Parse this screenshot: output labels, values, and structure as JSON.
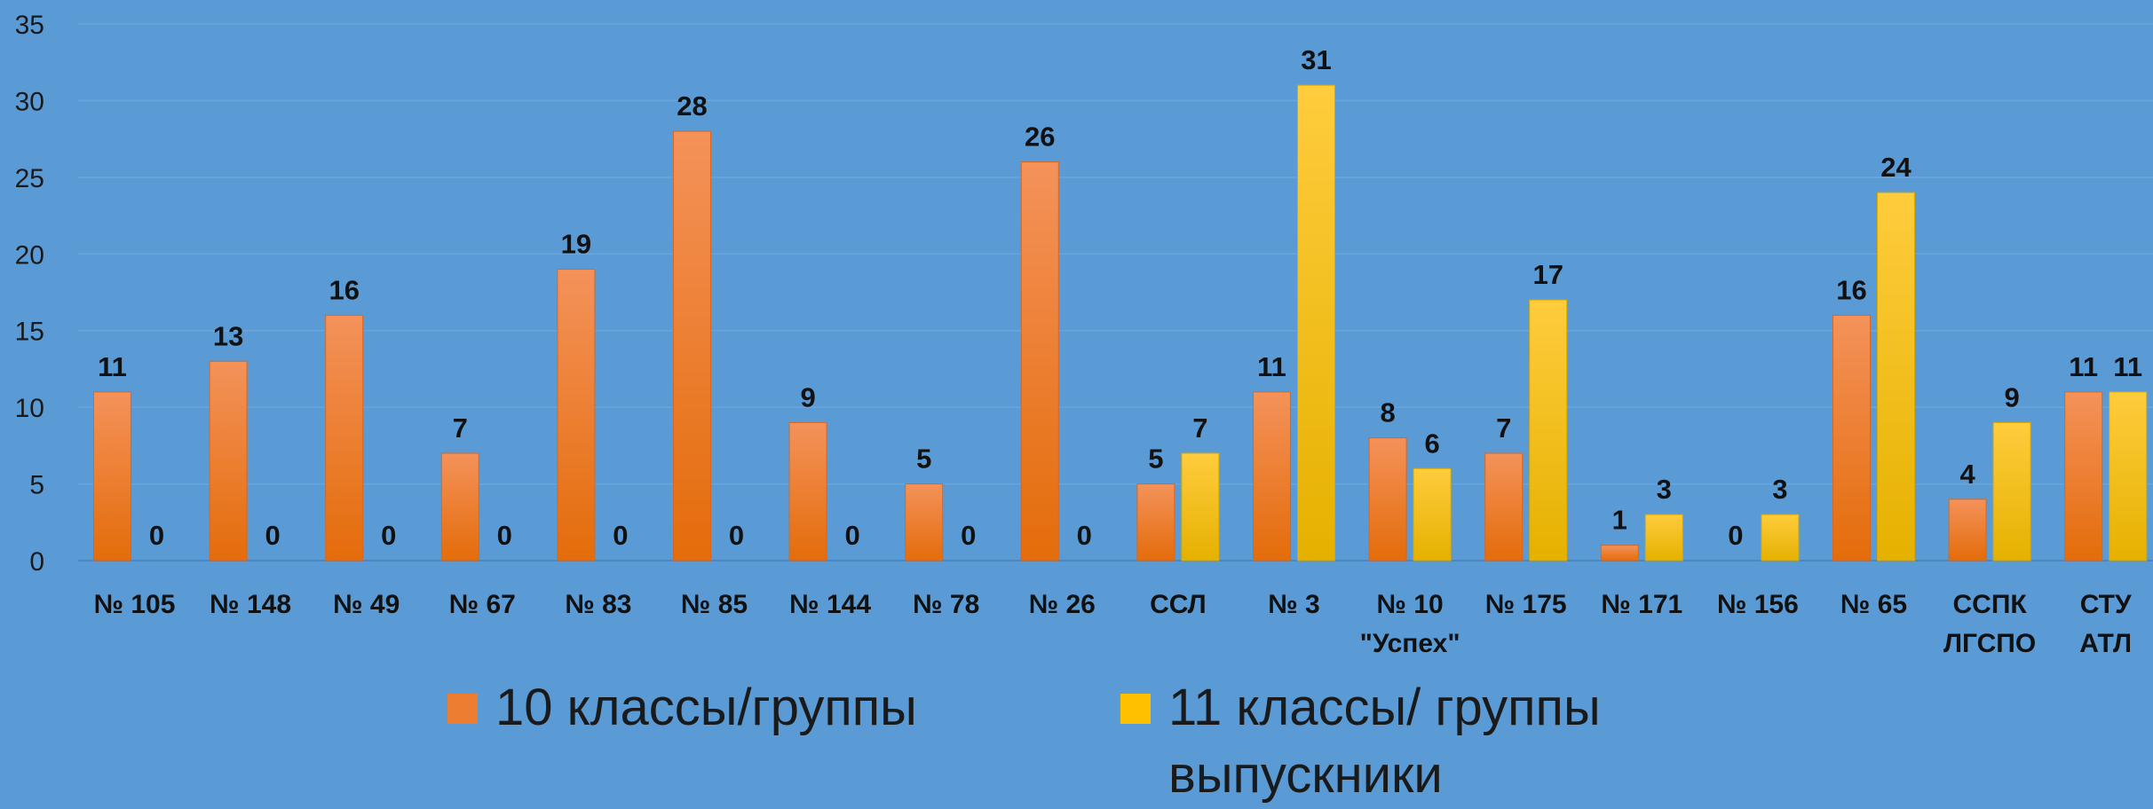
{
  "chart_data": {
    "type": "bar",
    "categories": [
      "№ 105",
      "№ 148",
      "№ 49",
      "№ 67",
      "№ 83",
      "№ 85",
      "№ 144",
      "№ 78",
      "№ 26",
      "ССЛ",
      "№ 3",
      "№ 10\n\"Успех\"",
      "№ 175",
      "№ 171",
      "№ 156",
      "№ 65",
      "ССПК\nЛГСПО",
      "СТУ\nАТЛ"
    ],
    "series": [
      {
        "name": "10 классы/группы",
        "color": "#ed7d31",
        "values": [
          11,
          13,
          16,
          7,
          19,
          28,
          9,
          5,
          26,
          5,
          11,
          8,
          7,
          1,
          0,
          16,
          4,
          11
        ],
        "labels": [
          "11",
          "13",
          "16",
          "7",
          "19",
          "28",
          "9",
          "5",
          "26",
          "5",
          "11",
          "8",
          "7",
          "1",
          "0",
          "16",
          "4",
          "11"
        ]
      },
      {
        "name": "11 классы/ группы\nвыпускники",
        "color": "#ffc000",
        "values": [
          0,
          0,
          0,
          0,
          0,
          0,
          0,
          0,
          0,
          7,
          31,
          6,
          17,
          3,
          3,
          24,
          9,
          11
        ],
        "labels": [
          "0",
          "0",
          "0",
          "0",
          "0",
          "0",
          "0",
          "0",
          "0",
          "7",
          "31",
          "6",
          "17",
          "3",
          "3",
          "24",
          "9",
          "11"
        ]
      }
    ],
    "y_ticks": [
      "0",
      "5",
      "10",
      "15",
      "20",
      "25",
      "30",
      "35"
    ],
    "ylim": [
      0,
      35
    ],
    "grid": true,
    "legend_position": "bottom",
    "title": "",
    "xlabel": "",
    "ylabel": ""
  }
}
